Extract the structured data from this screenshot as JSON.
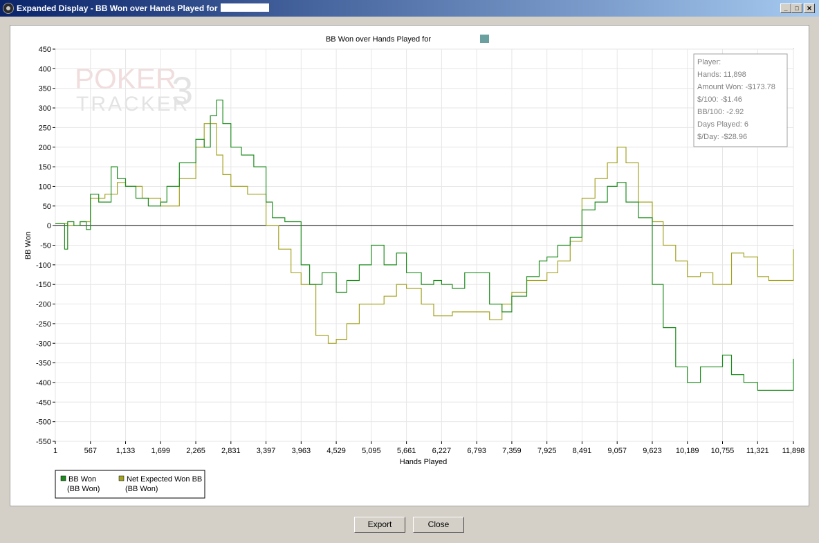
{
  "window": {
    "title": "Expanded Display - BB Won over Hands Played for",
    "controls": {
      "minimize": "_",
      "maximize": "□",
      "close": "✕"
    }
  },
  "buttons": {
    "export": "Export",
    "close": "Close"
  },
  "watermark": {
    "line1": "POKER",
    "digit": "3",
    "line2": "TRACKER"
  },
  "stats_box": [
    "Player:",
    "Hands: 11,898",
    "Amount Won: -$173.78",
    "$/100: -$1.46",
    "BB/100: -2.92",
    "Days Played: 6",
    "$/Day: -$28.96"
  ],
  "legend": [
    {
      "name": "BB Won",
      "sub": "(BB Won)",
      "color": "#1e8c1e"
    },
    {
      "name": "Net Expected Won BB",
      "sub": "(BB Won)",
      "color": "#a3a322"
    }
  ],
  "chart_data": {
    "type": "line",
    "title": "BB Won over Hands Played for",
    "xlabel": "Hands Played",
    "ylabel": "BB Won",
    "xlim": [
      1,
      11898
    ],
    "ylim": [
      -550,
      450
    ],
    "x_ticks": [
      1,
      567,
      1133,
      1699,
      2265,
      2831,
      3397,
      3963,
      4529,
      5095,
      5661,
      6227,
      6793,
      7359,
      7925,
      8491,
      9057,
      9623,
      10189,
      10755,
      11321,
      11898
    ],
    "x_tick_labels": [
      "1",
      "567",
      "1,133",
      "1,699",
      "2,265",
      "2,831",
      "3,397",
      "3,963",
      "4,529",
      "5,095",
      "5,661",
      "6,227",
      "6,793",
      "7,359",
      "7,925",
      "8,491",
      "9,057",
      "9,623",
      "10,189",
      "10,755",
      "11,321",
      "11,898"
    ],
    "y_ticks": [
      450,
      400,
      350,
      300,
      250,
      200,
      150,
      100,
      50,
      0,
      -50,
      -100,
      -150,
      -200,
      -250,
      -300,
      -350,
      -400,
      -450,
      -500,
      -550
    ],
    "grid": true,
    "series": [
      {
        "name": "BB Won",
        "color": "#1e8c1e",
        "x": [
          1,
          150,
          200,
          300,
          400,
          500,
          567,
          700,
          900,
          1000,
          1133,
          1300,
          1500,
          1699,
          1800,
          2000,
          2265,
          2400,
          2500,
          2600,
          2700,
          2831,
          3000,
          3200,
          3397,
          3500,
          3700,
          3963,
          4100,
          4300,
          4529,
          4700,
          4900,
          5095,
          5300,
          5500,
          5661,
          5900,
          6100,
          6227,
          6400,
          6600,
          6793,
          7000,
          7200,
          7359,
          7600,
          7800,
          7925,
          8100,
          8300,
          8491,
          8700,
          8900,
          9057,
          9200,
          9400,
          9623,
          9800,
          10000,
          10189,
          10400,
          10600,
          10755,
          10900,
          11100,
          11321,
          11500,
          11700,
          11898
        ],
        "y": [
          5,
          -60,
          10,
          0,
          10,
          -10,
          80,
          60,
          150,
          120,
          100,
          70,
          50,
          60,
          100,
          160,
          220,
          200,
          280,
          320,
          260,
          200,
          180,
          150,
          60,
          20,
          10,
          -100,
          -150,
          -120,
          -170,
          -140,
          -100,
          -50,
          -100,
          -70,
          -120,
          -150,
          -140,
          -150,
          -160,
          -120,
          -120,
          -200,
          -220,
          -180,
          -130,
          -90,
          -80,
          -50,
          -30,
          40,
          60,
          100,
          110,
          60,
          20,
          -150,
          -260,
          -360,
          -400,
          -360,
          -360,
          -330,
          -380,
          -400,
          -420,
          -420,
          -420,
          -340
        ]
      },
      {
        "name": "Net Expected Won BB",
        "color": "#a3a322",
        "x": [
          1,
          200,
          400,
          567,
          800,
          1000,
          1133,
          1400,
          1699,
          2000,
          2265,
          2400,
          2500,
          2600,
          2700,
          2831,
          3100,
          3397,
          3600,
          3800,
          3963,
          4200,
          4400,
          4529,
          4700,
          4900,
          5095,
          5300,
          5500,
          5661,
          5900,
          6100,
          6227,
          6400,
          6600,
          6793,
          7000,
          7200,
          7359,
          7600,
          7800,
          7925,
          8100,
          8300,
          8491,
          8700,
          8900,
          9057,
          9200,
          9400,
          9623,
          9800,
          10000,
          10189,
          10400,
          10600,
          10755,
          10900,
          11100,
          11321,
          11500,
          11700,
          11898
        ],
        "y": [
          5,
          0,
          10,
          70,
          80,
          110,
          100,
          70,
          50,
          120,
          200,
          260,
          260,
          180,
          130,
          100,
          80,
          0,
          -60,
          -120,
          -150,
          -280,
          -300,
          -290,
          -250,
          -200,
          -200,
          -180,
          -150,
          -160,
          -200,
          -230,
          -230,
          -220,
          -220,
          -220,
          -240,
          -200,
          -170,
          -140,
          -140,
          -120,
          -90,
          -40,
          70,
          120,
          160,
          200,
          160,
          60,
          10,
          -50,
          -90,
          -130,
          -120,
          -150,
          -150,
          -70,
          -80,
          -130,
          -140,
          -140,
          -60
        ]
      }
    ]
  }
}
